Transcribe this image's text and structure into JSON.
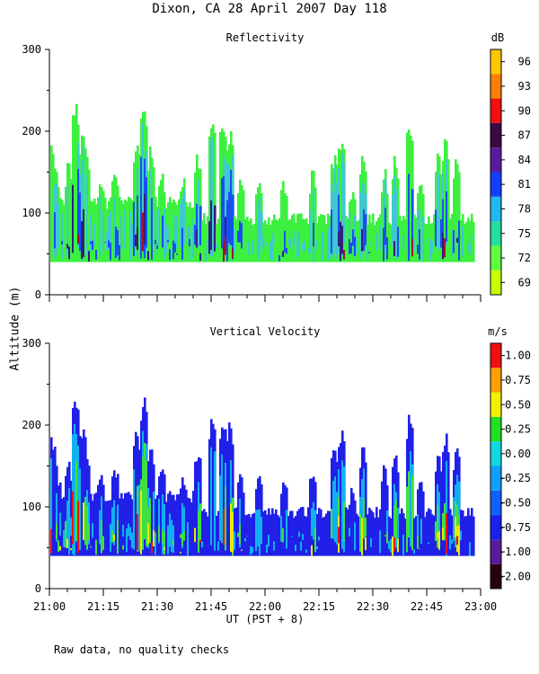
{
  "title": "Dixon, CA 28 April 2007  Day 118",
  "ylabel": "Altitude (m)",
  "footer": "Raw data, no quality checks",
  "chart_data": [
    {
      "type": "heatmap",
      "name": "reflectivity",
      "title": "Reflectivity",
      "unit": "dB",
      "xlabel": "",
      "ylabel": "Altitude (m)",
      "ylim": [
        0,
        300
      ],
      "yticks": [
        "0",
        "100",
        "200",
        "300"
      ],
      "x_range": [
        "21:00",
        "23:00"
      ],
      "xtick_labels": [],
      "colorbar": {
        "labels": [
          "69",
          "72",
          "75",
          "78",
          "81",
          "84",
          "87",
          "90",
          "93",
          "96"
        ],
        "colors": [
          "#c8ff00",
          "#60ff40",
          "#20e0a0",
          "#20b8f0",
          "#1040ff",
          "#5a1aa0",
          "#3a0a40",
          "#f01010",
          "#ff7f00",
          "#ffc800"
        ]
      },
      "layers": [
        {
          "label": "74",
          "color": "#3cf040",
          "offset": 0
        },
        {
          "label": "77",
          "color": "#40c8d0",
          "offset": -12
        },
        {
          "label": "80",
          "color": "#1850f0",
          "offset": -45
        },
        {
          "label": "84",
          "color": "#302080",
          "offset": -85
        },
        {
          "label": "90",
          "color": "#a01030",
          "offset": -120
        }
      ],
      "base_altitude": 40,
      "background_top": [
        120,
        120,
        120,
        120,
        120,
        120,
        120,
        120,
        120,
        120,
        120,
        120,
        120,
        120,
        100,
        100,
        100,
        100,
        100,
        100,
        100,
        100,
        100,
        100,
        100,
        100,
        100,
        100,
        100,
        100,
        100,
        100,
        100,
        100,
        100,
        100,
        100,
        100,
        100,
        100
      ],
      "echo_tops": [
        {
          "time": "21:00",
          "top": 200
        },
        {
          "time": "21:01",
          "top": 180
        },
        {
          "time": "21:02",
          "top": 150
        },
        {
          "time": "21:05",
          "top": 170
        },
        {
          "time": "21:07",
          "top": 240
        },
        {
          "time": "21:09",
          "top": 210
        },
        {
          "time": "21:10",
          "top": 180
        },
        {
          "time": "21:14",
          "top": 150
        },
        {
          "time": "21:18",
          "top": 160
        },
        {
          "time": "21:24",
          "top": 200
        },
        {
          "time": "21:26",
          "top": 240
        },
        {
          "time": "21:28",
          "top": 190
        },
        {
          "time": "21:31",
          "top": 160
        },
        {
          "time": "21:37",
          "top": 150
        },
        {
          "time": "21:41",
          "top": 180
        },
        {
          "time": "21:45",
          "top": 220
        },
        {
          "time": "21:48",
          "top": 220
        },
        {
          "time": "21:50",
          "top": 210
        },
        {
          "time": "21:53",
          "top": 150
        },
        {
          "time": "21:58",
          "top": 150
        },
        {
          "time": "22:05",
          "top": 150
        },
        {
          "time": "22:13",
          "top": 160
        },
        {
          "time": "22:19",
          "top": 180
        },
        {
          "time": "22:21",
          "top": 200
        },
        {
          "time": "22:24",
          "top": 140
        },
        {
          "time": "22:27",
          "top": 180
        },
        {
          "time": "22:33",
          "top": 160
        },
        {
          "time": "22:36",
          "top": 180
        },
        {
          "time": "22:40",
          "top": 220
        },
        {
          "time": "22:43",
          "top": 150
        },
        {
          "time": "22:48",
          "top": 180
        },
        {
          "time": "22:50",
          "top": 200
        },
        {
          "time": "22:53",
          "top": 180
        }
      ]
    },
    {
      "type": "heatmap",
      "name": "vertical_velocity",
      "title": "Vertical Velocity",
      "unit": "m/s",
      "xlabel": "UT  (PST + 8)",
      "ylabel": "Altitude (m)",
      "ylim": [
        0,
        300
      ],
      "yticks": [
        "0",
        "100",
        "200",
        "300"
      ],
      "x_range": [
        "21:00",
        "23:00"
      ],
      "xtick_labels": [
        "21:00",
        "21:15",
        "21:30",
        "21:45",
        "22:00",
        "22:15",
        "22:30",
        "22:45",
        "23:00"
      ],
      "colorbar": {
        "labels": [
          "-2.00",
          "-1.00",
          "-0.75",
          "-0.50",
          "-0.25",
          "0.00",
          "0.25",
          "0.50",
          "0.75",
          "1.00"
        ],
        "colors": [
          "#280010",
          "#5a1aa0",
          "#1a20f0",
          "#1060ff",
          "#10a0ff",
          "#10d8e0",
          "#20e020",
          "#f0f000",
          "#ffa000",
          "#f01010"
        ]
      },
      "layers": [
        {
          "label": "-0.75",
          "color": "#2020e8",
          "offset": 0
        },
        {
          "label": "-0.25",
          "color": "#10b0f0",
          "offset": -25
        },
        {
          "label": "0.25",
          "color": "#40e040",
          "offset": -55
        },
        {
          "label": "0.50",
          "color": "#f0e800",
          "offset": -75
        },
        {
          "label": "1.00",
          "color": "#f01010",
          "offset": -95
        }
      ],
      "base_altitude": 40,
      "background_top": [
        120,
        120,
        120,
        120,
        120,
        120,
        120,
        120,
        120,
        120,
        120,
        120,
        120,
        120,
        100,
        100,
        100,
        100,
        100,
        100,
        100,
        100,
        100,
        100,
        100,
        100,
        100,
        100,
        100,
        100,
        100,
        100,
        100,
        100,
        100,
        100,
        100,
        100,
        100,
        100
      ],
      "echo_tops": [
        {
          "time": "21:00",
          "top": 200
        },
        {
          "time": "21:01",
          "top": 180
        },
        {
          "time": "21:02",
          "top": 150
        },
        {
          "time": "21:05",
          "top": 170
        },
        {
          "time": "21:07",
          "top": 240
        },
        {
          "time": "21:09",
          "top": 210
        },
        {
          "time": "21:10",
          "top": 180
        },
        {
          "time": "21:14",
          "top": 150
        },
        {
          "time": "21:18",
          "top": 160
        },
        {
          "time": "21:24",
          "top": 200
        },
        {
          "time": "21:26",
          "top": 240
        },
        {
          "time": "21:28",
          "top": 190
        },
        {
          "time": "21:31",
          "top": 160
        },
        {
          "time": "21:37",
          "top": 150
        },
        {
          "time": "21:41",
          "top": 180
        },
        {
          "time": "21:45",
          "top": 220
        },
        {
          "time": "21:48",
          "top": 220
        },
        {
          "time": "21:50",
          "top": 210
        },
        {
          "time": "21:53",
          "top": 150
        },
        {
          "time": "21:58",
          "top": 150
        },
        {
          "time": "22:05",
          "top": 150
        },
        {
          "time": "22:13",
          "top": 160
        },
        {
          "time": "22:19",
          "top": 180
        },
        {
          "time": "22:21",
          "top": 200
        },
        {
          "time": "22:24",
          "top": 140
        },
        {
          "time": "22:27",
          "top": 180
        },
        {
          "time": "22:33",
          "top": 160
        },
        {
          "time": "22:36",
          "top": 180
        },
        {
          "time": "22:40",
          "top": 220
        },
        {
          "time": "22:43",
          "top": 150
        },
        {
          "time": "22:48",
          "top": 180
        },
        {
          "time": "22:50",
          "top": 200
        },
        {
          "time": "22:53",
          "top": 180
        }
      ]
    }
  ]
}
